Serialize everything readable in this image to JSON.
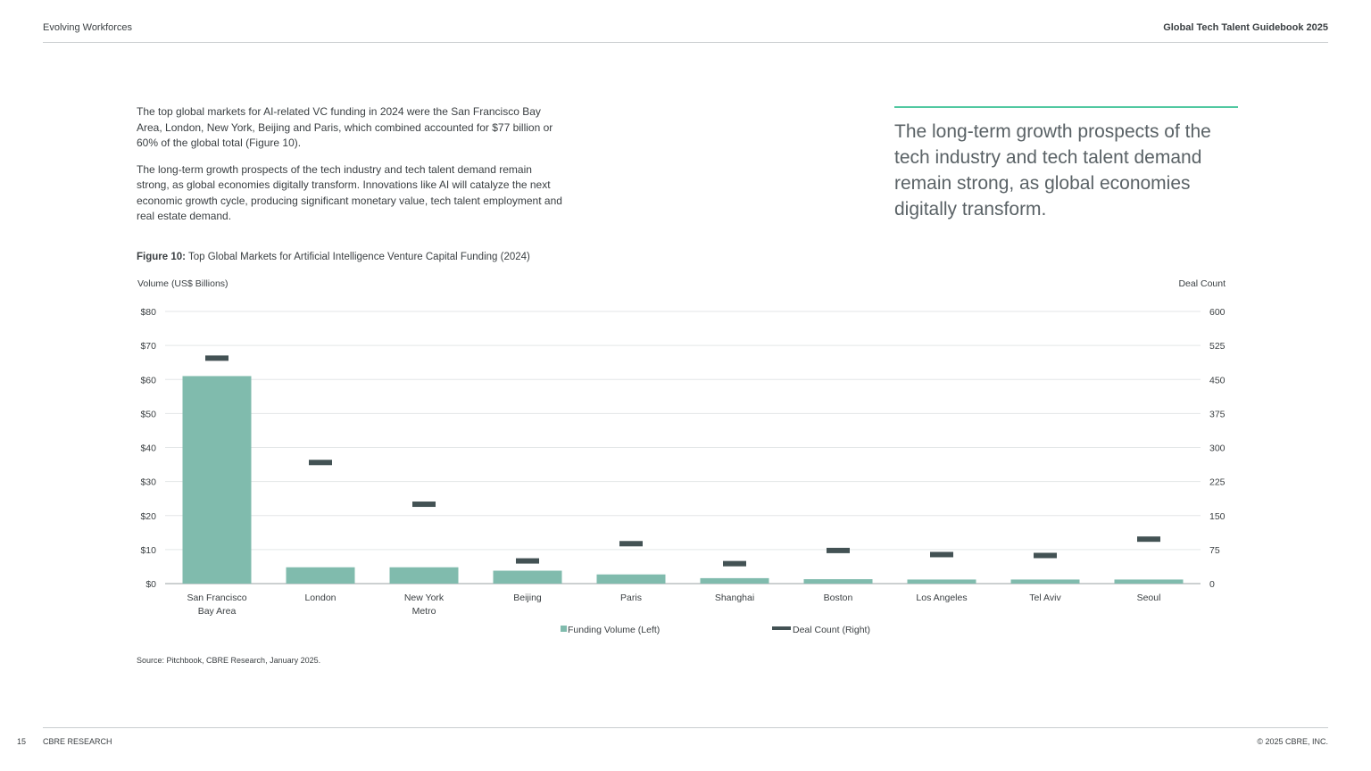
{
  "header": {
    "section": "Evolving Workforces",
    "publication": "Global Tech Talent Guidebook 2025"
  },
  "body": {
    "paragraph_1": "The top global markets for AI-related VC funding in 2024 were the San Francisco Bay Area, London, New York, Beijing and Paris, which combined accounted for $77 billion or 60% of the global total (Figure 10).",
    "paragraph_2": "The long-term growth prospects of the tech industry and tech talent demand remain strong, as global economies digitally transform. Innovations like AI will catalyze the next economic growth cycle, producing significant monetary value, tech talent employment and real estate demand."
  },
  "pull_quote": "The long-term growth prospects of the tech industry and tech talent demand remain strong, as global economies digitally transform.",
  "figure": {
    "label": "Figure 10:",
    "caption": "Top Global Markets for Artificial Intelligence Venture Capital Funding (2024)"
  },
  "chart_data": {
    "type": "bar",
    "categories": [
      [
        "San Francisco",
        "Bay Area"
      ],
      [
        "London"
      ],
      [
        "New York",
        "Metro"
      ],
      [
        "Beijing"
      ],
      [
        "Paris"
      ],
      [
        "Shanghai"
      ],
      [
        "Boston"
      ],
      [
        "Los Angeles"
      ],
      [
        "Tel Aviv"
      ],
      [
        "Seoul"
      ]
    ],
    "series": [
      {
        "name": "Funding Volume (Left)",
        "kind": "bar",
        "axis": "left",
        "color": "#80bbad",
        "values": [
          61,
          4.8,
          4.8,
          3.8,
          2.7,
          1.6,
          1.3,
          1.2,
          1.2,
          1.2
        ]
      },
      {
        "name": "Deal Count (Right)",
        "kind": "marker",
        "axis": "right",
        "color": "#435254",
        "values": [
          497,
          267,
          175,
          50,
          88,
          44,
          73,
          64,
          62,
          98
        ]
      }
    ],
    "ylabel_left": "Volume (US$ Billions)",
    "ylabel_right": "Deal Count",
    "ylim_left": [
      0,
      80
    ],
    "ylim_right": [
      0,
      600
    ],
    "yticks_left": [
      "$0",
      "$10",
      "$20",
      "$30",
      "$40",
      "$50",
      "$60",
      "$70",
      "$80"
    ],
    "yticks_right": [
      "0",
      "75",
      "150",
      "225",
      "300",
      "375",
      "450",
      "525",
      "600"
    ],
    "grid": true,
    "legend_position": "bottom-center"
  },
  "source": "Source: Pitchbook, CBRE Research, January 2025.",
  "footer": {
    "page_number": "15",
    "brand": "CBRE RESEARCH",
    "copyright": "© 2025 CBRE, INC."
  }
}
